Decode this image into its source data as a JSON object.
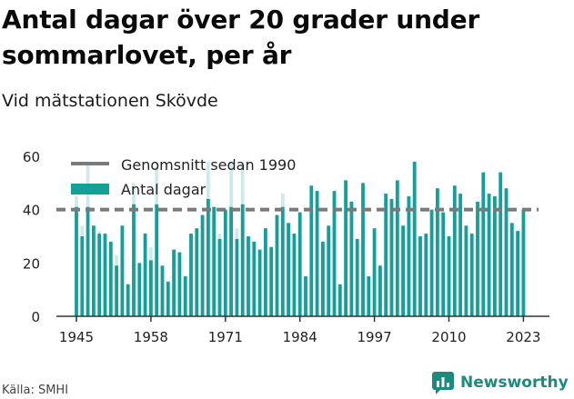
{
  "header": {
    "title": "Antal dagar över 20 grader under sommarlovet, per år",
    "subtitle": "Vid mätstationen Skövde"
  },
  "footer": {
    "source": "Källa: SMHI",
    "brand": "Newsworthy"
  },
  "colors": {
    "bar": "#14a099",
    "bar_background": "#cdebe9",
    "average_line": "#7a7a7a",
    "brand": "#1e8a7e"
  },
  "chart_data": {
    "type": "bar",
    "x": [
      1945,
      1946,
      1947,
      1948,
      1949,
      1950,
      1951,
      1952,
      1953,
      1954,
      1955,
      1956,
      1957,
      1958,
      1959,
      1960,
      1961,
      1962,
      1963,
      1964,
      1965,
      1966,
      1967,
      1968,
      1969,
      1970,
      1971,
      1972,
      1973,
      1974,
      1975,
      1976,
      1977,
      1978,
      1979,
      1980,
      1981,
      1982,
      1983,
      1984,
      1985,
      1986,
      1987,
      1988,
      1989,
      1990,
      1991,
      1992,
      1993,
      1994,
      1995,
      1996,
      1997,
      1998,
      1999,
      2000,
      2001,
      2002,
      2003,
      2004,
      2005,
      2006,
      2007,
      2008,
      2009,
      2010,
      2011,
      2012,
      2013,
      2014,
      2015,
      2016,
      2017,
      2018,
      2019,
      2020,
      2021,
      2022,
      2023
    ],
    "series": [
      {
        "name": "Antal dagar",
        "values": [
          41,
          30,
          41,
          34,
          31,
          31,
          28,
          19,
          34,
          12,
          42,
          20,
          31,
          21,
          42,
          19,
          13,
          25,
          24,
          15,
          31,
          33,
          38,
          44,
          41,
          29,
          40,
          41,
          29,
          42,
          30,
          28,
          25,
          33,
          26,
          38,
          41,
          35,
          31,
          39,
          15,
          49,
          47,
          28,
          34,
          47,
          12,
          51,
          43,
          29,
          50,
          15,
          33,
          19,
          46,
          44,
          51,
          34,
          45,
          58,
          30,
          31,
          40,
          48,
          39,
          30,
          49,
          46,
          34,
          31,
          43,
          54,
          46,
          45,
          54,
          48,
          35,
          32,
          40
        ]
      }
    ],
    "background_values": [
      45,
      34,
      58,
      34,
      32,
      30,
      28,
      23,
      34,
      12,
      50,
      20,
      31,
      26,
      56,
      19,
      13,
      25,
      24,
      15,
      31,
      33,
      38,
      58,
      41,
      31,
      40,
      58,
      33,
      57,
      30,
      28,
      25,
      33,
      26,
      38,
      46,
      35,
      31,
      39,
      15,
      49,
      47,
      28,
      34,
      47,
      12,
      51,
      43,
      29,
      50,
      15,
      33,
      19,
      46,
      44,
      51,
      34,
      45,
      58,
      30,
      31,
      40,
      48,
      39,
      30,
      49,
      46,
      34,
      31,
      43,
      54,
      46,
      45,
      54,
      48,
      35,
      32,
      40
    ],
    "average": 40,
    "average_label": "Genomsnitt sedan 1990",
    "xticks": [
      1945,
      1958,
      1971,
      1984,
      1997,
      2010,
      2023
    ],
    "yticks": [
      0,
      20,
      40,
      60
    ],
    "ylim": [
      0,
      60
    ],
    "grid": false,
    "legend_position": "top-left"
  }
}
